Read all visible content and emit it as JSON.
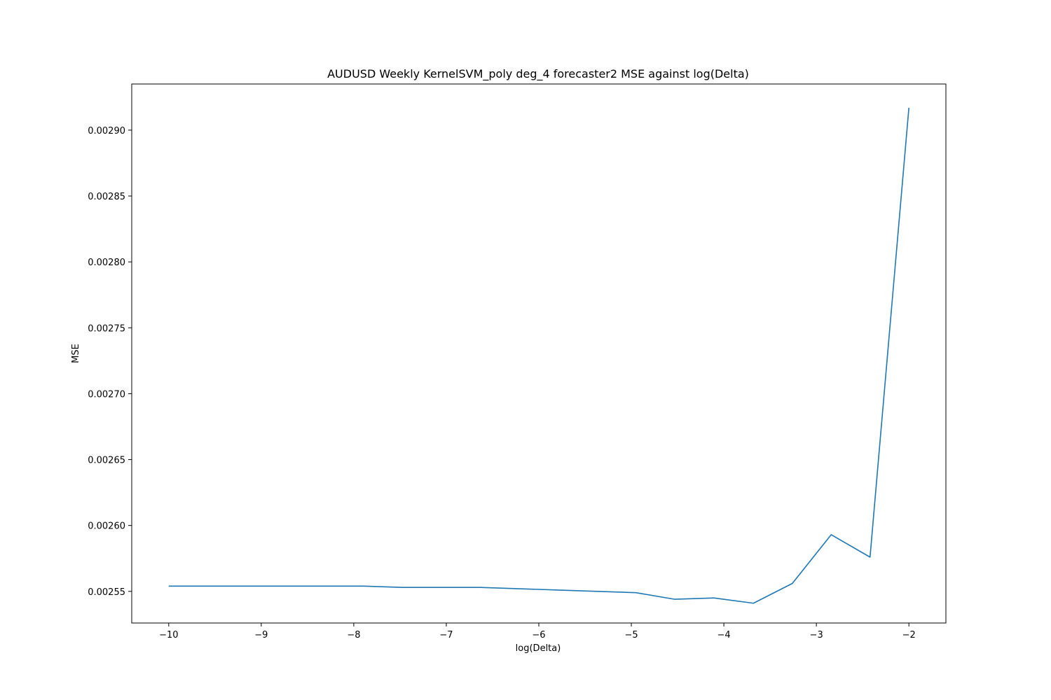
{
  "chart_data": {
    "type": "line",
    "title": "AUDUSD Weekly KernelSVM_poly deg_4 forecaster2 MSE against log(Delta)",
    "xlabel": "log(Delta)",
    "ylabel": "MSE",
    "xlim": [
      -10.4,
      -1.6
    ],
    "ylim": [
      0.002526,
      0.002935
    ],
    "grid": false,
    "legend": "none",
    "xticks": [
      -10,
      -9,
      -8,
      -7,
      -6,
      -5,
      -4,
      -3,
      -2
    ],
    "xtick_labels": [
      "−10",
      "−9",
      "−8",
      "−7",
      "−6",
      "−5",
      "−4",
      "−3",
      "−2"
    ],
    "yticks": [
      0.00255,
      0.0026,
      0.00265,
      0.0027,
      0.00275,
      0.0028,
      0.00285,
      0.0029
    ],
    "ytick_labels": [
      "0.00255",
      "0.00260",
      "0.00265",
      "0.00270",
      "0.00275",
      "0.00280",
      "0.00285",
      "0.00290"
    ],
    "series": [
      {
        "color": "#1f77b4",
        "x": [
          -10.0,
          -9.58,
          -9.16,
          -8.74,
          -8.32,
          -7.89,
          -7.47,
          -7.05,
          -6.63,
          -6.21,
          -5.79,
          -5.37,
          -4.95,
          -4.53,
          -4.11,
          -3.68,
          -3.26,
          -2.84,
          -2.42,
          -2.0
        ],
        "y": [
          0.002554,
          0.002554,
          0.002554,
          0.002554,
          0.002554,
          0.002554,
          0.002553,
          0.002553,
          0.002553,
          0.002552,
          0.002551,
          0.00255,
          0.002549,
          0.002544,
          0.002545,
          0.002541,
          0.002556,
          0.002593,
          0.002576,
          0.002917
        ]
      }
    ]
  }
}
